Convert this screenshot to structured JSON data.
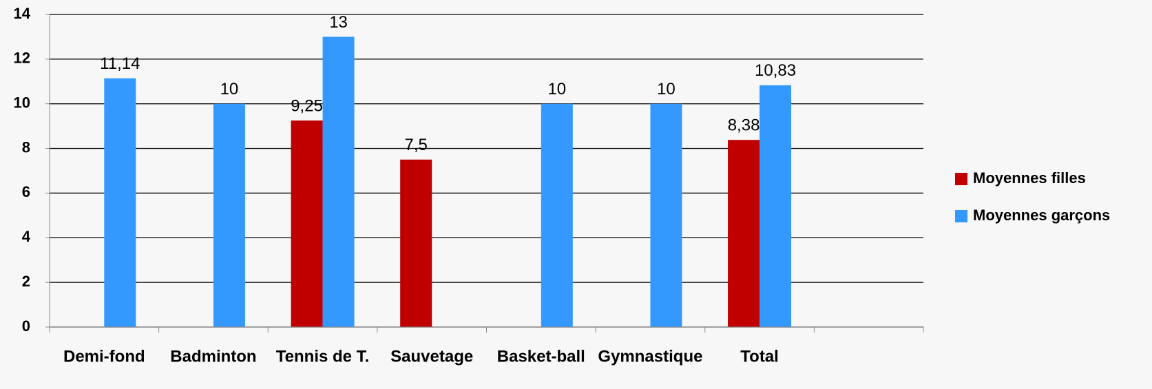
{
  "chart_data": {
    "type": "bar",
    "categories": [
      "Demi-fond",
      "Badminton",
      "Tennis de T.",
      "Sauvetage",
      "Basket-ball",
      "Gymnastique",
      "Total",
      null
    ],
    "series": [
      {
        "name": "Moyennes filles",
        "color": "#c00000",
        "values": [
          null,
          null,
          9.25,
          7.5,
          null,
          null,
          8.38,
          null
        ],
        "value_labels": [
          null,
          null,
          "9,25",
          "7,5",
          null,
          null,
          "8,38",
          null
        ]
      },
      {
        "name": "Moyennes garçons",
        "color": "#3399ff",
        "values": [
          11.14,
          10,
          13,
          null,
          10,
          10,
          10.83,
          null
        ],
        "value_labels": [
          "11,14",
          "10",
          "13",
          null,
          "10",
          "10",
          "10,83",
          null
        ]
      }
    ],
    "ylim": [
      0,
      14
    ],
    "yticks": [
      0,
      2,
      4,
      6,
      8,
      10,
      12,
      14
    ],
    "grid": true,
    "legend": "right"
  }
}
